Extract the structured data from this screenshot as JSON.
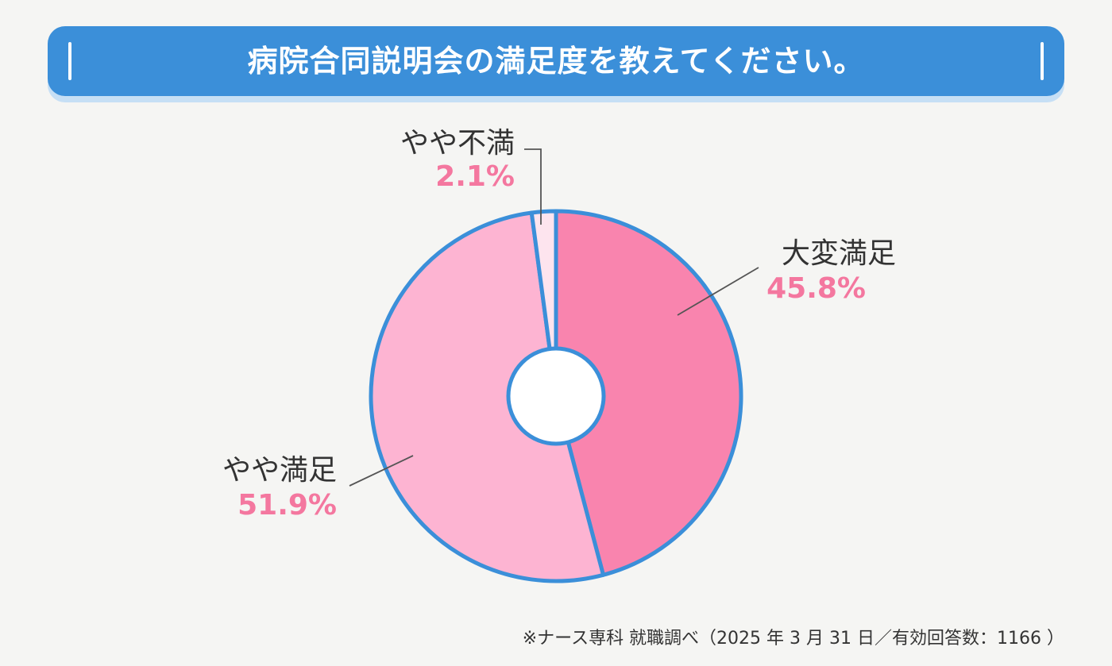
{
  "header": {
    "title": "病院合同説明会の満足度を教えてください。"
  },
  "chart_data": {
    "type": "pie",
    "donut": true,
    "categories": [
      "大変満足",
      "やや満足",
      "やや不満"
    ],
    "values": [
      45.8,
      51.9,
      2.1
    ],
    "value_labels": [
      "45.8%",
      "51.9%",
      "2.1%"
    ],
    "colors": [
      "#f984ae",
      "#fdb4d2",
      "#fde4ee"
    ],
    "outline_color": "#3b8fd9",
    "label_value_color": "#f4779f",
    "start_angle_deg": 0,
    "direction": "clockwise"
  },
  "footer": {
    "source": "※ナース専科 就職調べ（2025 年 3 月 31 日／有効回答数：1166 ）"
  }
}
